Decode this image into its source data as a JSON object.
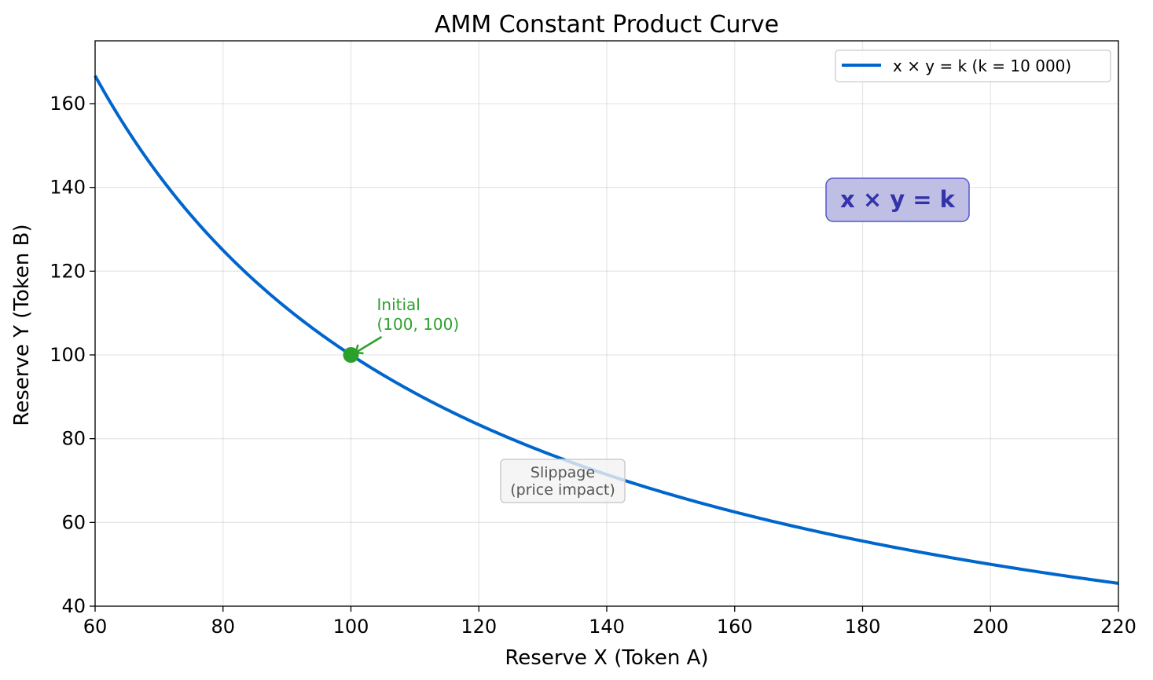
{
  "chart_data": {
    "type": "line",
    "title": "AMM Constant Product Curve",
    "xlabel": "Reserve X (Token A)",
    "ylabel": "Reserve Y (Token B)",
    "xlim": [
      60,
      220
    ],
    "ylim": [
      40,
      175
    ],
    "xticks": [
      60,
      80,
      100,
      120,
      140,
      160,
      180,
      200,
      220
    ],
    "yticks": [
      40,
      60,
      80,
      100,
      120,
      140,
      160
    ],
    "grid": true,
    "legend_position": "top-right",
    "series": [
      {
        "name": "x × y = k  (k = 10 000)",
        "function": "y = 10000 / x",
        "k": 10000,
        "x_range": [
          60,
          220
        ],
        "color": "#0066cc"
      }
    ],
    "points": [
      {
        "x": 100,
        "y": 100,
        "color": "#2ca02c",
        "label_lines": [
          "Initial",
          "(100, 100)"
        ]
      }
    ],
    "annotations": [
      {
        "text_lines": [
          "Slippage",
          "(price impact)"
        ],
        "x": 130,
        "y": 70,
        "color": "#555555",
        "box": "#f2f2f2"
      },
      {
        "text": "x × y = k",
        "x": 185,
        "y": 137,
        "color": "#3333aa",
        "box": "#bfbfe6",
        "bold": true
      }
    ]
  }
}
